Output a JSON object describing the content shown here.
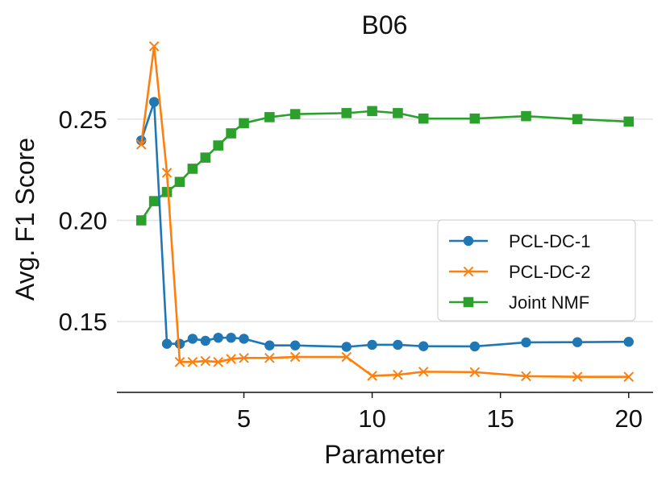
{
  "chart_data": {
    "type": "line",
    "title": "B06",
    "xlabel": "Parameter",
    "ylabel": "Avg. F1 Score",
    "xlim": [
      0.05,
      20.95
    ],
    "ylim": [
      0.115,
      0.285
    ],
    "xticks": [
      5,
      10,
      15,
      20
    ],
    "xtick_labels": [
      "5",
      "10",
      "15",
      "20"
    ],
    "yticks": [
      0.15,
      0.2,
      0.25
    ],
    "ytick_labels": [
      "0.15",
      "0.20",
      "0.25"
    ],
    "grid": "horizontal",
    "legend_position": "center-right",
    "series": [
      {
        "name": "PCL-DC-1",
        "color": "#1f77b4",
        "marker": "circle",
        "x": [
          1,
          1.5,
          2,
          2.5,
          3,
          3.5,
          4,
          4.5,
          5,
          6,
          7,
          9,
          10,
          11,
          12,
          14,
          16,
          18,
          20
        ],
        "values": [
          0.2395,
          0.2585,
          0.139,
          0.139,
          0.1415,
          0.1405,
          0.142,
          0.142,
          0.1415,
          0.1382,
          0.1382,
          0.1375,
          0.1385,
          0.1385,
          0.1378,
          0.1377,
          0.1397,
          0.1398,
          0.14
        ]
      },
      {
        "name": "PCL-DC-2",
        "color": "#ff7f0e",
        "marker": "x",
        "x": [
          1,
          1.5,
          2,
          2.5,
          3,
          3.5,
          4,
          4.5,
          5,
          6,
          7,
          9,
          10,
          11,
          12,
          14,
          16,
          18,
          20
        ],
        "values": [
          0.2375,
          0.286,
          0.2235,
          0.13,
          0.13,
          0.1305,
          0.13,
          0.1315,
          0.132,
          0.132,
          0.1325,
          0.1325,
          0.1232,
          0.1237,
          0.1252,
          0.125,
          0.123,
          0.1227,
          0.1227
        ]
      },
      {
        "name": "Joint NMF",
        "color": "#2ca02c",
        "marker": "square",
        "x": [
          1,
          1.5,
          2,
          2.5,
          3,
          3.5,
          4,
          4.5,
          5,
          6,
          7,
          9,
          10,
          11,
          12,
          14,
          16,
          18,
          20
        ],
        "values": [
          0.2,
          0.2095,
          0.214,
          0.219,
          0.2255,
          0.231,
          0.237,
          0.243,
          0.248,
          0.251,
          0.2525,
          0.253,
          0.254,
          0.253,
          0.2503,
          0.2503,
          0.2515,
          0.25,
          0.2488
        ]
      }
    ]
  }
}
